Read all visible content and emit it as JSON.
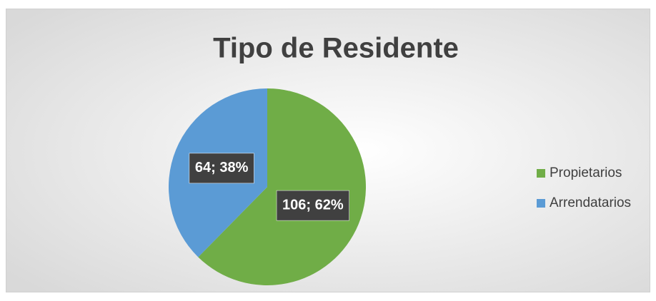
{
  "chart_data": {
    "type": "pie",
    "title": "Tipo de Residente",
    "categories": [
      "Propietarios",
      "Arrendatarios"
    ],
    "values": [
      106,
      64
    ],
    "value_labels": [
      "106; 62%",
      "64; 38%"
    ],
    "colors": [
      "#70ad47",
      "#5b9bd5"
    ],
    "legend": "right"
  }
}
